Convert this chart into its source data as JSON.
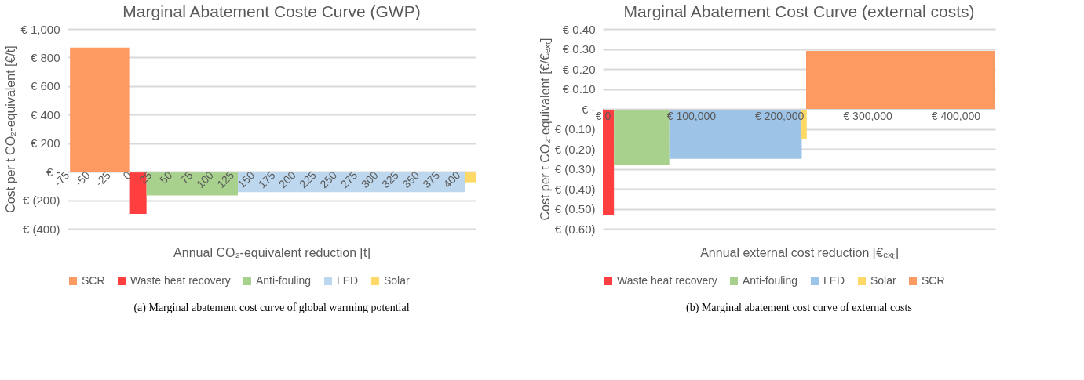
{
  "chart_data": [
    {
      "type": "area",
      "title": "Marginal Abatement Coste Curve (GWP)",
      "xlabel": "Annual CO₂-equivalent reduction [t]",
      "ylabel": "Cost per t CO₂-equivalent [€/t]",
      "series": [
        {
          "name": "SCR",
          "color": "#fd9a61",
          "x": [
            -72,
            0
          ],
          "values": [
            870,
            870
          ]
        },
        {
          "name": "Waste heat recovery",
          "color": "#ff3f3f",
          "x": [
            0,
            21
          ],
          "values": [
            -295,
            -295
          ]
        },
        {
          "name": "Anti-fouling",
          "color": "#a9d18e",
          "x": [
            21,
            132
          ],
          "values": [
            -166,
            -166
          ]
        },
        {
          "name": "LED",
          "color": "#bdd7ee",
          "x": [
            132,
            408
          ],
          "values": [
            -144,
            -144
          ]
        },
        {
          "name": "Solar",
          "color": "#ffd966",
          "x": [
            408,
            421
          ],
          "values": [
            -74,
            -74
          ]
        }
      ],
      "xlim": [
        -75,
        421
      ],
      "xticks": [
        -75,
        -50,
        -25,
        0,
        25,
        50,
        75,
        100,
        125,
        150,
        175,
        200,
        225,
        250,
        275,
        300,
        325,
        350,
        375,
        400
      ],
      "ylim": [
        -400,
        1000
      ],
      "yticks": [
        {
          "value": -400,
          "label": "€ (400)"
        },
        {
          "value": -200,
          "label": "€ (200)"
        },
        {
          "value": 0,
          "label": "€ -"
        },
        {
          "value": 200,
          "label": "€ 200"
        },
        {
          "value": 400,
          "label": "€ 400"
        },
        {
          "value": 600,
          "label": "€ 600"
        },
        {
          "value": 800,
          "label": "€ 800"
        },
        {
          "value": 1000,
          "label": "€ 1,000"
        }
      ],
      "grid": "y",
      "legend": "bottom",
      "annotations": [
        "(a) Marginal abatement cost curve of global warming potential"
      ]
    },
    {
      "type": "area",
      "title": "Marginal Abatement Cost Curve (external costs)",
      "xlabel": "Annual external cost reduction [€ₑₓₜ]",
      "ylabel": "Cost per t CO₂-equivalent [€/€ₑₓₜ]",
      "series": [
        {
          "name": "Waste heat recovery",
          "color": "#ff3f3f",
          "x": [
            0,
            12600
          ],
          "values": [
            -0.53,
            -0.53
          ]
        },
        {
          "name": "Anti-fouling",
          "color": "#a9d18e",
          "x": [
            12600,
            75400
          ],
          "values": [
            -0.28,
            -0.28
          ]
        },
        {
          "name": "LED",
          "color": "#9dc3e6",
          "x": [
            75400,
            225600
          ],
          "values": [
            -0.25,
            -0.25
          ]
        },
        {
          "name": "Solar",
          "color": "#ffd966",
          "x": [
            224600,
            231200
          ],
          "values": [
            -0.15,
            -0.15
          ]
        },
        {
          "name": "SCR",
          "color": "#fd9a61",
          "x": [
            230500,
            445000
          ],
          "values": [
            0.29,
            0.29
          ]
        }
      ],
      "xlim": [
        0,
        445000
      ],
      "xticks": [
        {
          "value": 0,
          "label": "€ 0"
        },
        {
          "value": 100000,
          "label": "€ 100,000"
        },
        {
          "value": 200000,
          "label": "€ 200,000"
        },
        {
          "value": 300000,
          "label": "€ 300,000"
        },
        {
          "value": 400000,
          "label": "€ 400,000"
        }
      ],
      "ylim": [
        -0.6,
        0.4
      ],
      "yticks": [
        {
          "value": -0.6,
          "label": "€ (0.60)"
        },
        {
          "value": -0.5,
          "label": "€ (0.50)"
        },
        {
          "value": -0.4,
          "label": "€ (0.40)"
        },
        {
          "value": -0.3,
          "label": "€ (0.30)"
        },
        {
          "value": -0.2,
          "label": "€ (0.20)"
        },
        {
          "value": -0.1,
          "label": "€ (0.10)"
        },
        {
          "value": 0,
          "label": "€ -"
        },
        {
          "value": 0.1,
          "label": "€ 0.10"
        },
        {
          "value": 0.2,
          "label": "€ 0.20"
        },
        {
          "value": 0.3,
          "label": "€ 0.30"
        },
        {
          "value": 0.4,
          "label": "€ 0.40"
        }
      ],
      "grid": "y",
      "legend": "bottom",
      "annotations": [
        "(b) Marginal abatement cost curve of external costs"
      ]
    }
  ]
}
